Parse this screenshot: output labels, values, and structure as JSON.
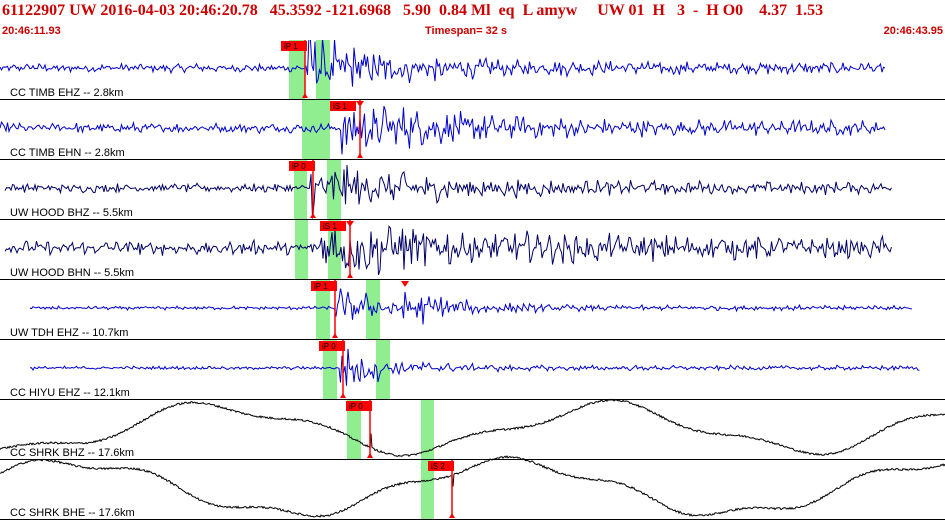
{
  "header": {
    "event_line": "61122907 UW 2016-04-03 20:46:20.78   45.3592 -121.6968   5.90  0.84 Ml  eq  L amyw     UW 01  H   3  -  H O0    4.37  1.53",
    "start_time": "20:46:11.93",
    "timespan": "Timespan=  32 s",
    "end_time": "20:46:43.95"
  },
  "colors": {
    "header_text": "#cc0000",
    "trace_blue": "#0000cc",
    "trace_navy": "#000066",
    "trace_black": "#000000",
    "pick_window": "#90ee90",
    "pick_marker": "#ff0000"
  },
  "channels": [
    {
      "label": "CC TIMB EHZ -- 2.8km",
      "color": "trace_blue",
      "picks": [
        {
          "label": "iP 1",
          "kind": "P"
        }
      ],
      "windows": 2
    },
    {
      "label": "CC TIMB EHN -- 2.8km",
      "color": "trace_blue",
      "picks": [
        {
          "label": "iS 1",
          "kind": "S"
        }
      ],
      "windows": 2
    },
    {
      "label": "UW HOOD BHZ -- 5.5km",
      "color": "trace_navy",
      "picks": [
        {
          "label": "iP 0",
          "kind": "P"
        }
      ],
      "windows": 2
    },
    {
      "label": "UW HOOD BHN -- 5.5km",
      "color": "trace_navy",
      "picks": [
        {
          "label": "iS 1",
          "kind": "S"
        }
      ],
      "windows": 2
    },
    {
      "label": "UW TDH EHZ -- 10.7km",
      "color": "trace_blue",
      "picks": [
        {
          "label": "iP 1",
          "kind": "P"
        }
      ],
      "windows": 2
    },
    {
      "label": "CC HIYU EHZ -- 12.1km",
      "color": "trace_blue",
      "picks": [
        {
          "label": "iP 0",
          "kind": "P"
        }
      ],
      "windows": 2
    },
    {
      "label": "CC SHRK BHZ -- 17.6km",
      "color": "trace_black",
      "picks": [
        {
          "label": "iP 0",
          "kind": "P"
        }
      ],
      "windows": 2
    },
    {
      "label": "CC SHRK BHE -- 17.6km",
      "color": "trace_black",
      "picks": [
        {
          "label": "iS 2",
          "kind": "S"
        }
      ],
      "windows": 1
    }
  ]
}
